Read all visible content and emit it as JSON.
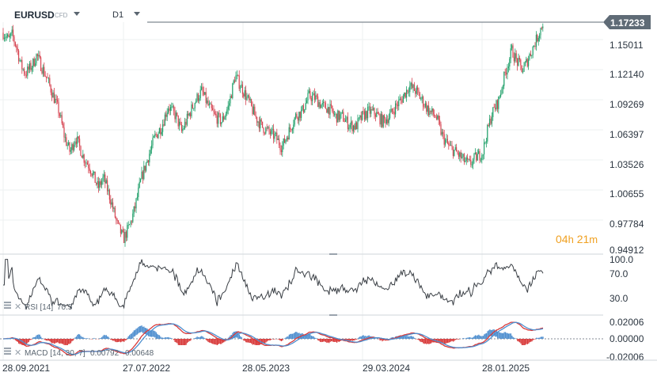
{
  "header": {
    "symbol": "EURUSD",
    "symbol_type": "CFD",
    "timeframe": "D1"
  },
  "price_badge": {
    "value": "1.17233",
    "color": "#5f6b76"
  },
  "countdown": {
    "hours": "04",
    "h_unit": "h",
    "minutes": "21",
    "m_unit": "m"
  },
  "colors": {
    "bull": "#21a06a",
    "bear": "#d64451",
    "line": "#3a3f45",
    "macd_blue": "#4f8fcf",
    "macd_red": "#d83a3a"
  },
  "chart_data": [
    {
      "type": "candlestick",
      "title": "",
      "y_ticks": [
        "1.15011",
        "1.12140",
        "1.09269",
        "1.06397",
        "1.03526",
        "1.00655",
        "0.97784",
        "0.94912"
      ],
      "ylim": [
        0.94912,
        1.17233
      ],
      "last_price": 1.17233,
      "x_ticks": [
        "28.09.2021",
        "27.07.2022",
        "28.05.2023",
        "29.03.2024",
        "28.01.2025"
      ],
      "path_points": [
        [
          0,
          1.162
        ],
        [
          5,
          1.155
        ],
        [
          8,
          1.16
        ],
        [
          12,
          1.148
        ],
        [
          16,
          1.13
        ],
        [
          20,
          1.122
        ],
        [
          26,
          1.13
        ],
        [
          30,
          1.14
        ],
        [
          36,
          1.125
        ],
        [
          40,
          1.115
        ],
        [
          45,
          1.1
        ],
        [
          50,
          1.085
        ],
        [
          55,
          1.06
        ],
        [
          60,
          1.045
        ],
        [
          65,
          1.06
        ],
        [
          72,
          1.04
        ],
        [
          78,
          1.03
        ],
        [
          85,
          1.01
        ],
        [
          90,
          1.02
        ],
        [
          96,
          1.0
        ],
        [
          102,
          0.975
        ],
        [
          108,
          0.96
        ],
        [
          114,
          0.975
        ],
        [
          118,
          0.99
        ],
        [
          124,
          1.02
        ],
        [
          130,
          1.04
        ],
        [
          136,
          1.06
        ],
        [
          142,
          1.07
        ],
        [
          148,
          1.09
        ],
        [
          155,
          1.08
        ],
        [
          160,
          1.065
        ],
        [
          166,
          1.08
        ],
        [
          172,
          1.095
        ],
        [
          178,
          1.105
        ],
        [
          184,
          1.09
        ],
        [
          190,
          1.08
        ],
        [
          196,
          1.075
        ],
        [
          202,
          1.09
        ],
        [
          208,
          1.12
        ],
        [
          214,
          1.108
        ],
        [
          220,
          1.095
        ],
        [
          226,
          1.08
        ],
        [
          232,
          1.07
        ],
        [
          238,
          1.065
        ],
        [
          244,
          1.06
        ],
        [
          250,
          1.05
        ],
        [
          256,
          1.065
        ],
        [
          262,
          1.08
        ],
        [
          268,
          1.085
        ],
        [
          274,
          1.1
        ],
        [
          280,
          1.098
        ],
        [
          286,
          1.09
        ],
        [
          292,
          1.088
        ],
        [
          298,
          1.08
        ],
        [
          304,
          1.08
        ],
        [
          310,
          1.072
        ],
        [
          316,
          1.07
        ],
        [
          322,
          1.08
        ],
        [
          328,
          1.085
        ],
        [
          334,
          1.083
        ],
        [
          340,
          1.075
        ],
        [
          346,
          1.08
        ],
        [
          352,
          1.09
        ],
        [
          358,
          1.098
        ],
        [
          364,
          1.11
        ],
        [
          370,
          1.105
        ],
        [
          376,
          1.095
        ],
        [
          382,
          1.085
        ],
        [
          388,
          1.08
        ],
        [
          394,
          1.06
        ],
        [
          400,
          1.05
        ],
        [
          406,
          1.045
        ],
        [
          412,
          1.038
        ],
        [
          418,
          1.033
        ],
        [
          424,
          1.04
        ],
        [
          430,
          1.045
        ],
        [
          434,
          1.065
        ],
        [
          438,
          1.082
        ],
        [
          444,
          1.095
        ],
        [
          450,
          1.122
        ],
        [
          456,
          1.145
        ],
        [
          460,
          1.135
        ],
        [
          466,
          1.125
        ],
        [
          472,
          1.14
        ],
        [
          478,
          1.155
        ],
        [
          484,
          1.172
        ]
      ]
    },
    {
      "type": "line",
      "title": "RSI [14]",
      "value_label": "70.5",
      "last_value": 70.5,
      "y_ticks": [
        "100.0",
        "70.0",
        "30.0"
      ],
      "ylim": [
        0,
        100
      ],
      "levels": [
        70,
        30
      ]
    },
    {
      "type": "line",
      "title": "MACD [14, 30, 7]",
      "value_labels": [
        "0.00792",
        "0.00648"
      ],
      "y_ticks": [
        "0.02006",
        "0.00000",
        "-0.02006"
      ],
      "ylim": [
        -0.02006,
        0.02006
      ]
    }
  ]
}
